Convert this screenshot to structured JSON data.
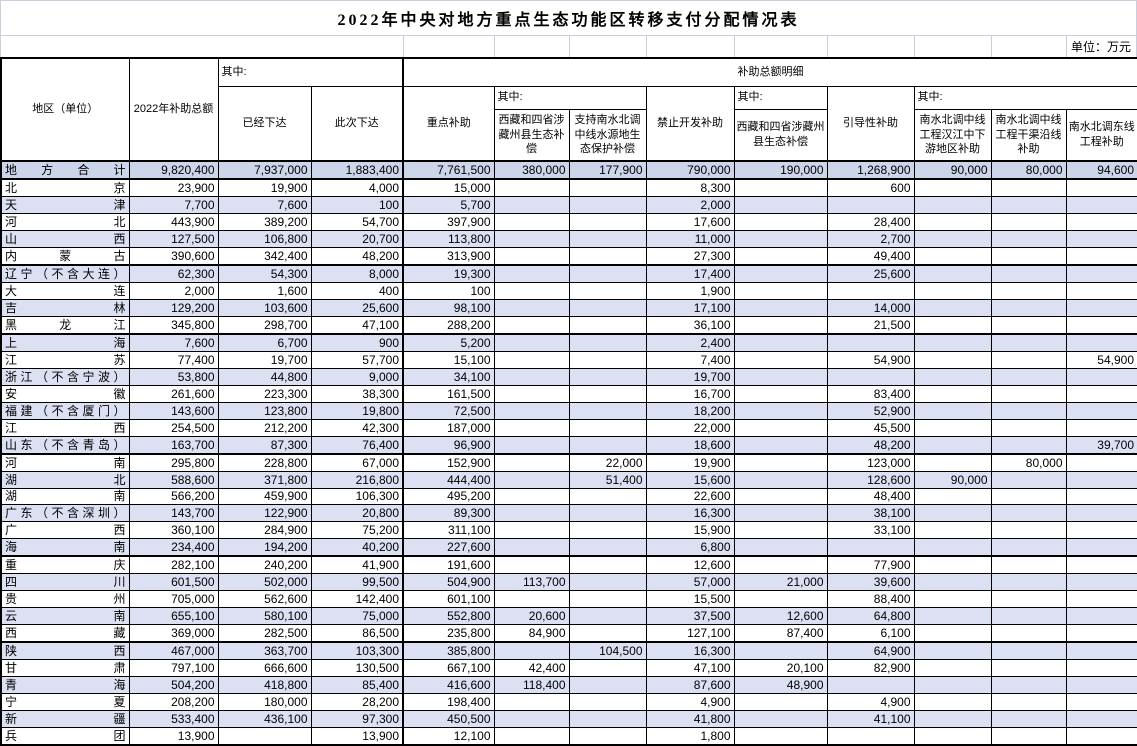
{
  "title": "2022年中央对地方重点生态功能区转移支付分配情况表",
  "unit_label": "单位：万元",
  "colors": {
    "zebra_row": "#dbe1f3",
    "total_row": "#cdd5eb",
    "border": "#000000",
    "gridline": "#c9cfdf"
  },
  "table": {
    "header": {
      "region": "地区（单位）",
      "total_2022": "2022年补助总额",
      "among_label": "其中:",
      "already_issued": "已经下达",
      "this_issued": "此次下达",
      "detail_group": "补助总额明细",
      "key_subsidy": "重点补助",
      "tibet_eco_key": "西藏和四省涉藏州县生态补偿",
      "snwd_source": "支持南水北调中线水源地生态保护补偿",
      "prohibit_dev": "禁止开发补助",
      "tibet_eco_prohibit": "西藏和四省涉藏州县生态补偿",
      "guide_subsidy": "引导性补助",
      "hanjiang": "南水北调中线工程汉江中下游地区补助",
      "canal": "南水北调中线工程干渠沿线补助",
      "east_line": "南水北调东线工程补助"
    },
    "rows": [
      {
        "region": "地方合计",
        "total": true,
        "group_end": false,
        "values": [
          "9,820,400",
          "7,937,000",
          "1,883,400",
          "7,761,500",
          "380,000",
          "177,900",
          "790,000",
          "190,000",
          "1,268,900",
          "90,000",
          "80,000",
          "94,600"
        ]
      },
      {
        "region": "北京",
        "total": false,
        "group_end": false,
        "values": [
          "23,900",
          "19,900",
          "4,000",
          "15,000",
          "",
          "",
          "8,300",
          "",
          "600",
          "",
          "",
          ""
        ]
      },
      {
        "region": "天津",
        "total": false,
        "group_end": false,
        "values": [
          "7,700",
          "7,600",
          "100",
          "5,700",
          "",
          "",
          "2,000",
          "",
          "",
          "",
          "",
          ""
        ]
      },
      {
        "region": "河北",
        "total": false,
        "group_end": false,
        "values": [
          "443,900",
          "389,200",
          "54,700",
          "397,900",
          "",
          "",
          "17,600",
          "",
          "28,400",
          "",
          "",
          ""
        ]
      },
      {
        "region": "山西",
        "total": false,
        "group_end": false,
        "values": [
          "127,500",
          "106,800",
          "20,700",
          "113,800",
          "",
          "",
          "11,000",
          "",
          "2,700",
          "",
          "",
          ""
        ]
      },
      {
        "region": "内蒙古",
        "total": false,
        "group_end": true,
        "values": [
          "390,600",
          "342,400",
          "48,200",
          "313,900",
          "",
          "",
          "27,300",
          "",
          "49,400",
          "",
          "",
          ""
        ]
      },
      {
        "region": "辽宁（不含大连）",
        "total": false,
        "group_end": false,
        "values": [
          "62,300",
          "54,300",
          "8,000",
          "19,300",
          "",
          "",
          "17,400",
          "",
          "25,600",
          "",
          "",
          ""
        ]
      },
      {
        "region": "大连",
        "total": false,
        "group_end": false,
        "values": [
          "2,000",
          "1,600",
          "400",
          "100",
          "",
          "",
          "1,900",
          "",
          "",
          "",
          "",
          ""
        ]
      },
      {
        "region": "吉林",
        "total": false,
        "group_end": false,
        "values": [
          "129,200",
          "103,600",
          "25,600",
          "98,100",
          "",
          "",
          "17,100",
          "",
          "14,000",
          "",
          "",
          ""
        ]
      },
      {
        "region": "黑龙江",
        "total": false,
        "group_end": true,
        "values": [
          "345,800",
          "298,700",
          "47,100",
          "288,200",
          "",
          "",
          "36,100",
          "",
          "21,500",
          "",
          "",
          ""
        ]
      },
      {
        "region": "上海",
        "total": false,
        "group_end": false,
        "values": [
          "7,600",
          "6,700",
          "900",
          "5,200",
          "",
          "",
          "2,400",
          "",
          "",
          "",
          "",
          ""
        ]
      },
      {
        "region": "江苏",
        "total": false,
        "group_end": false,
        "values": [
          "77,400",
          "19,700",
          "57,700",
          "15,100",
          "",
          "",
          "7,400",
          "",
          "54,900",
          "",
          "",
          "54,900"
        ]
      },
      {
        "region": "浙江（不含宁波）",
        "total": false,
        "group_end": false,
        "values": [
          "53,800",
          "44,800",
          "9,000",
          "34,100",
          "",
          "",
          "19,700",
          "",
          "",
          "",
          "",
          ""
        ]
      },
      {
        "region": "安徽",
        "total": false,
        "group_end": false,
        "values": [
          "261,600",
          "223,300",
          "38,300",
          "161,500",
          "",
          "",
          "16,700",
          "",
          "83,400",
          "",
          "",
          ""
        ]
      },
      {
        "region": "福建（不含厦门）",
        "total": false,
        "group_end": false,
        "values": [
          "143,600",
          "123,800",
          "19,800",
          "72,500",
          "",
          "",
          "18,200",
          "",
          "52,900",
          "",
          "",
          ""
        ]
      },
      {
        "region": "江西",
        "total": false,
        "group_end": false,
        "values": [
          "254,500",
          "212,200",
          "42,300",
          "187,000",
          "",
          "",
          "22,000",
          "",
          "45,500",
          "",
          "",
          ""
        ]
      },
      {
        "region": "山东（不含青岛）",
        "total": false,
        "group_end": true,
        "values": [
          "163,700",
          "87,300",
          "76,400",
          "96,900",
          "",
          "",
          "18,600",
          "",
          "48,200",
          "",
          "",
          "39,700"
        ]
      },
      {
        "region": "河南",
        "total": false,
        "group_end": false,
        "values": [
          "295,800",
          "228,800",
          "67,000",
          "152,900",
          "",
          "22,000",
          "19,900",
          "",
          "123,000",
          "",
          "80,000",
          ""
        ]
      },
      {
        "region": "湖北",
        "total": false,
        "group_end": false,
        "values": [
          "588,600",
          "371,800",
          "216,800",
          "444,400",
          "",
          "51,400",
          "15,600",
          "",
          "128,600",
          "90,000",
          "",
          ""
        ]
      },
      {
        "region": "湖南",
        "total": false,
        "group_end": false,
        "values": [
          "566,200",
          "459,900",
          "106,300",
          "495,200",
          "",
          "",
          "22,600",
          "",
          "48,400",
          "",
          "",
          ""
        ]
      },
      {
        "region": "广东（不含深圳）",
        "total": false,
        "group_end": false,
        "values": [
          "143,700",
          "122,900",
          "20,800",
          "89,300",
          "",
          "",
          "16,300",
          "",
          "38,100",
          "",
          "",
          ""
        ]
      },
      {
        "region": "广西",
        "total": false,
        "group_end": false,
        "values": [
          "360,100",
          "284,900",
          "75,200",
          "311,100",
          "",
          "",
          "15,900",
          "",
          "33,100",
          "",
          "",
          ""
        ]
      },
      {
        "region": "海南",
        "total": false,
        "group_end": true,
        "values": [
          "234,400",
          "194,200",
          "40,200",
          "227,600",
          "",
          "",
          "6,800",
          "",
          "",
          "",
          "",
          ""
        ]
      },
      {
        "region": "重庆",
        "total": false,
        "group_end": false,
        "values": [
          "282,100",
          "240,200",
          "41,900",
          "191,600",
          "",
          "",
          "12,600",
          "",
          "77,900",
          "",
          "",
          ""
        ]
      },
      {
        "region": "四川",
        "total": false,
        "group_end": false,
        "values": [
          "601,500",
          "502,000",
          "99,500",
          "504,900",
          "113,700",
          "",
          "57,000",
          "21,000",
          "39,600",
          "",
          "",
          ""
        ]
      },
      {
        "region": "贵州",
        "total": false,
        "group_end": false,
        "values": [
          "705,000",
          "562,600",
          "142,400",
          "601,100",
          "",
          "",
          "15,500",
          "",
          "88,400",
          "",
          "",
          ""
        ]
      },
      {
        "region": "云南",
        "total": false,
        "group_end": false,
        "values": [
          "655,100",
          "580,100",
          "75,000",
          "552,800",
          "20,600",
          "",
          "37,500",
          "12,600",
          "64,800",
          "",
          "",
          ""
        ]
      },
      {
        "region": "西藏",
        "total": false,
        "group_end": true,
        "values": [
          "369,000",
          "282,500",
          "86,500",
          "235,800",
          "84,900",
          "",
          "127,100",
          "87,400",
          "6,100",
          "",
          "",
          ""
        ]
      },
      {
        "region": "陕西",
        "total": false,
        "group_end": false,
        "values": [
          "467,000",
          "363,700",
          "103,300",
          "385,800",
          "",
          "104,500",
          "16,300",
          "",
          "64,900",
          "",
          "",
          ""
        ]
      },
      {
        "region": "甘肃",
        "total": false,
        "group_end": false,
        "values": [
          "797,100",
          "666,600",
          "130,500",
          "667,100",
          "42,400",
          "",
          "47,100",
          "20,100",
          "82,900",
          "",
          "",
          ""
        ]
      },
      {
        "region": "青海",
        "total": false,
        "group_end": false,
        "values": [
          "504,200",
          "418,800",
          "85,400",
          "416,600",
          "118,400",
          "",
          "87,600",
          "48,900",
          "",
          "",
          "",
          ""
        ]
      },
      {
        "region": "宁夏",
        "total": false,
        "group_end": false,
        "values": [
          "208,200",
          "180,000",
          "28,200",
          "198,400",
          "",
          "",
          "4,900",
          "",
          "4,900",
          "",
          "",
          ""
        ]
      },
      {
        "region": "新疆",
        "total": false,
        "group_end": false,
        "values": [
          "533,400",
          "436,100",
          "97,300",
          "450,500",
          "",
          "",
          "41,800",
          "",
          "41,100",
          "",
          "",
          ""
        ]
      },
      {
        "region": "兵团",
        "total": false,
        "group_end": false,
        "values": [
          "13,900",
          "",
          "13,900",
          "12,100",
          "",
          "",
          "1,800",
          "",
          "",
          "",
          "",
          ""
        ]
      }
    ]
  }
}
